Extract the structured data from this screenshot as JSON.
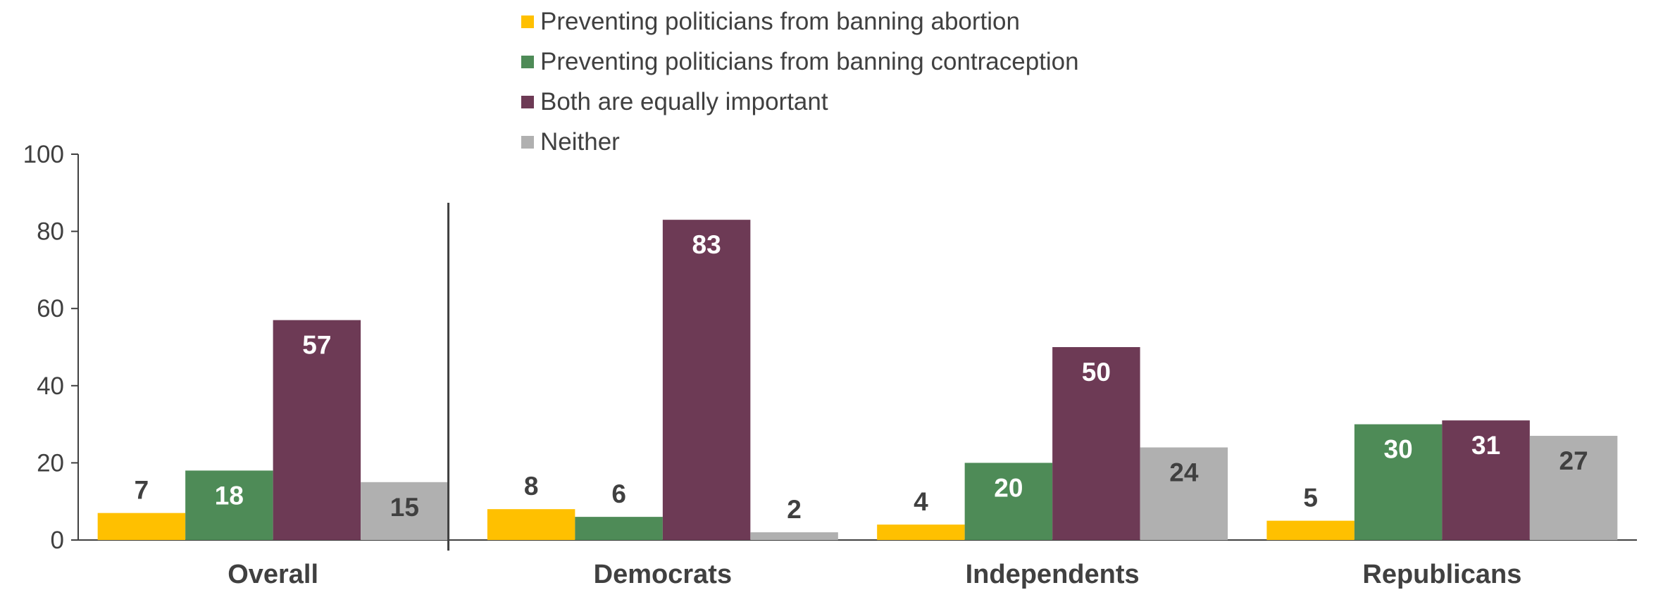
{
  "chart_data": {
    "type": "bar",
    "categories": [
      "Overall",
      "Democrats",
      "Independents",
      "Republicans"
    ],
    "series": [
      {
        "name": "Preventing politicians from banning abortion",
        "color": "#FFC000",
        "values": [
          7,
          8,
          4,
          5
        ],
        "label_color": "#404040"
      },
      {
        "name": "Preventing politicians from banning contraception",
        "color": "#4E8B57",
        "values": [
          18,
          6,
          20,
          30
        ],
        "label_color": "#ffffff"
      },
      {
        "name": "Both are equally important",
        "color": "#6D3A55",
        "values": [
          57,
          83,
          50,
          31
        ],
        "label_color": "#ffffff"
      },
      {
        "name": "Neither",
        "color": "#B0B0B0",
        "values": [
          15,
          2,
          24,
          27
        ],
        "label_color": "#404040"
      }
    ],
    "ylim": [
      0,
      100
    ],
    "yticks": [
      "0",
      "20",
      "40",
      "60",
      "80",
      "100"
    ],
    "grid": false,
    "legend_position": "top",
    "separator_after_category": "Overall"
  }
}
